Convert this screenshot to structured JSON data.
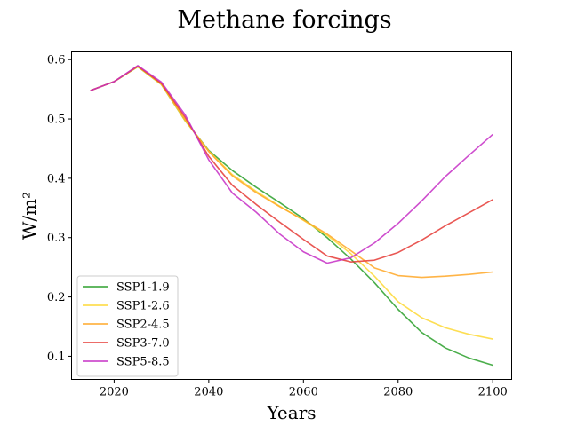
{
  "chart_data": {
    "type": "line",
    "title": "Methane forcings",
    "xlabel": "Years",
    "ylabel": "W/m²",
    "xlim": [
      2011,
      2104
    ],
    "ylim": [
      0.061,
      0.613
    ],
    "xticks": [
      2020,
      2040,
      2060,
      2080,
      2100
    ],
    "yticks": [
      0.1,
      0.2,
      0.3,
      0.4,
      0.5,
      0.6
    ],
    "grid": false,
    "legend_position": "lower-left",
    "x": [
      2015,
      2020,
      2025,
      2030,
      2035,
      2040,
      2045,
      2050,
      2055,
      2060,
      2065,
      2070,
      2075,
      2080,
      2085,
      2090,
      2095,
      2100
    ],
    "series": [
      {
        "name": "SSP1-1.9",
        "color": "#2ca02c",
        "values": [
          0.548,
          0.563,
          0.588,
          0.558,
          0.497,
          0.447,
          0.413,
          0.385,
          0.359,
          0.332,
          0.3,
          0.264,
          0.224,
          0.179,
          0.14,
          0.114,
          0.097,
          0.085
        ]
      },
      {
        "name": "SSP1-2.6",
        "color": "#fdd835",
        "values": [
          0.548,
          0.563,
          0.588,
          0.558,
          0.497,
          0.446,
          0.406,
          0.378,
          0.353,
          0.329,
          0.304,
          0.273,
          0.235,
          0.192,
          0.165,
          0.148,
          0.137,
          0.129
        ]
      },
      {
        "name": "SSP2-4.5",
        "color": "#ffa726",
        "values": [
          0.548,
          0.563,
          0.589,
          0.559,
          0.499,
          0.445,
          0.404,
          0.376,
          0.352,
          0.33,
          0.306,
          0.278,
          0.249,
          0.236,
          0.233,
          0.235,
          0.238,
          0.242
        ]
      },
      {
        "name": "SSP3-7.0",
        "color": "#e53935",
        "values": [
          0.548,
          0.563,
          0.589,
          0.56,
          0.503,
          0.437,
          0.388,
          0.356,
          0.326,
          0.297,
          0.269,
          0.259,
          0.262,
          0.275,
          0.296,
          0.32,
          0.342,
          0.364
        ]
      },
      {
        "name": "SSP5-8.5",
        "color": "#c62ec6",
        "values": [
          0.548,
          0.563,
          0.59,
          0.562,
          0.507,
          0.431,
          0.375,
          0.343,
          0.306,
          0.276,
          0.257,
          0.266,
          0.291,
          0.324,
          0.362,
          0.403,
          0.439,
          0.474
        ]
      }
    ]
  }
}
